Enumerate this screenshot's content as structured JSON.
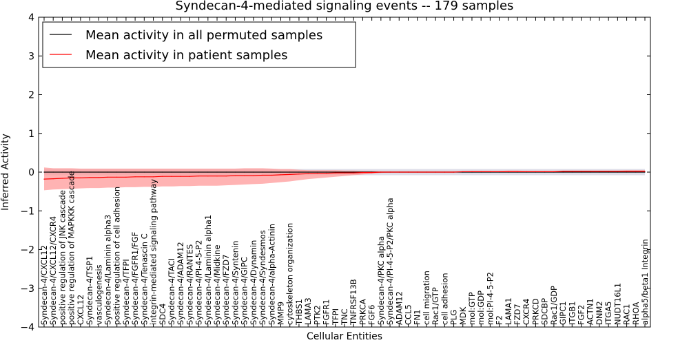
{
  "chart_data": {
    "type": "line",
    "title": "Syndecan-4-mediated signaling events -- 179 samples",
    "xlabel": "Cellular Entities",
    "ylabel": "Inferred Activity",
    "ylim": [
      -4,
      4
    ],
    "yticks": [
      4,
      3,
      2,
      1,
      0,
      -1,
      -2,
      -3,
      -4
    ],
    "ytick_labels": [
      "4",
      "3",
      "2",
      "1",
      "0",
      "−1",
      "−2",
      "−3",
      "−4"
    ],
    "legend_position": "top-left",
    "colors": {
      "permuted": "#000000",
      "patient": "#ff0000",
      "patient_band": "#ff9999",
      "permuted_band": "#c8c8d8"
    },
    "categories": [
      "Syndecan-4/CXCL12",
      "Syndecan-4/CXCL12/CXCR4",
      "positive regulation of JNK cascade",
      "positive regulation of MAPKKK cascade",
      "CXCL12",
      "Syndecan-4/TSP1",
      "vasculogenesis",
      "Syndecan-4/Laminin alpha3",
      "positive regulation of cell adhesion",
      "Syndecan-4/TFPI",
      "Syndecan-4/FGFR1/FGF",
      "Syndecan-4/Tenascin C",
      "integrin-mediated signaling pathway",
      "SDC4",
      "Syndecan-4/TACI",
      "Syndecan-4/ADAM12",
      "Syndecan-4/RANTES",
      "Syndecan-4/PI-4-5-P2",
      "Syndecan-4/Laminin alpha1",
      "Syndecan-4/Midkine",
      "Syndecan-4/FZD7",
      "Syndecan-4/Syntenin",
      "Syndecan-4/GIPC",
      "Syndecan-4/Dynamin",
      "Syndecan-4/Syndesmos",
      "Syndecan-4/alpha-Actinin",
      "MMP9",
      "cytoskeleton organization",
      "THBS1",
      "LAMA3",
      "PTK2",
      "FGFR1",
      "TFPI",
      "TNC",
      "TNFRSF13B",
      "PRKCA",
      "FGF6",
      "Syndecan-4/PKC alpha",
      "Syndecan-4/PI-4-5-P2/PKC alpha",
      "ADAM12",
      "CCL5",
      "FN1",
      "cell migration",
      "Rac1/GTP",
      "cell adhesion",
      "PLG",
      "MDK",
      "mol:GTP",
      "mol:GDP",
      "mol:PI-4-5-P2",
      "F2",
      "LAMA1",
      "FZD7",
      "CXCR4",
      "PRKCD",
      "SDCBP",
      "Rac1/GDP",
      "GIPC1",
      "ITGB1",
      "FGF2",
      "ACTN1",
      "DNM2",
      "ITGA5",
      "NUDT16L1",
      "RAC1",
      "RHOA",
      "alpha5/beta1 Integrin"
    ],
    "series": [
      {
        "name": "Mean activity in all permuted samples",
        "color": "#000000",
        "values": [
          0.0,
          0.0,
          0.0,
          0.0,
          0.0,
          0.0,
          0.0,
          0.0,
          0.0,
          0.0,
          0.0,
          0.0,
          0.0,
          0.0,
          0.0,
          0.0,
          0.0,
          0.0,
          0.0,
          0.0,
          0.0,
          0.0,
          0.0,
          0.0,
          0.0,
          0.0,
          0.0,
          0.0,
          0.0,
          0.0,
          0.0,
          0.0,
          0.0,
          0.0,
          0.0,
          0.0,
          0.0,
          0.0,
          0.0,
          0.0,
          0.0,
          0.0,
          0.0,
          0.0,
          0.0,
          0.0,
          0.0,
          0.0,
          0.0,
          0.0,
          0.0,
          0.0,
          0.0,
          0.0,
          0.0,
          0.0,
          0.0,
          0.0,
          0.0,
          0.0,
          0.0,
          0.0,
          0.0,
          0.0,
          0.0,
          0.0,
          0.0
        ],
        "band_lower": [
          -0.08,
          -0.08,
          -0.08,
          -0.08,
          -0.08,
          -0.08,
          -0.08,
          -0.08,
          -0.08,
          -0.08,
          -0.08,
          -0.08,
          -0.08,
          -0.08,
          -0.08,
          -0.08,
          -0.08,
          -0.08,
          -0.08,
          -0.08,
          -0.08,
          -0.08,
          -0.08,
          -0.08,
          -0.08,
          -0.08,
          -0.08,
          -0.08,
          -0.08,
          -0.08,
          -0.08,
          -0.08,
          -0.08,
          -0.08,
          -0.08,
          -0.08,
          -0.08,
          -0.08,
          -0.08,
          -0.08,
          -0.08,
          -0.08,
          -0.08,
          -0.08,
          -0.08,
          -0.08,
          -0.08,
          -0.08,
          -0.08,
          -0.08,
          -0.08,
          -0.08,
          -0.08,
          -0.08,
          -0.08,
          -0.08,
          -0.08,
          -0.08,
          -0.08,
          -0.08,
          -0.08,
          -0.08,
          -0.08,
          -0.08,
          -0.08,
          -0.08,
          -0.08
        ],
        "band_upper": [
          0.08,
          0.08,
          0.08,
          0.08,
          0.08,
          0.08,
          0.08,
          0.08,
          0.08,
          0.08,
          0.08,
          0.08,
          0.08,
          0.08,
          0.08,
          0.08,
          0.08,
          0.08,
          0.08,
          0.08,
          0.08,
          0.08,
          0.08,
          0.08,
          0.08,
          0.08,
          0.08,
          0.08,
          0.08,
          0.08,
          0.08,
          0.08,
          0.08,
          0.08,
          0.08,
          0.08,
          0.08,
          0.08,
          0.08,
          0.08,
          0.08,
          0.08,
          0.08,
          0.08,
          0.08,
          0.08,
          0.08,
          0.08,
          0.08,
          0.08,
          0.08,
          0.08,
          0.08,
          0.08,
          0.08,
          0.08,
          0.08,
          0.08,
          0.08,
          0.08,
          0.08,
          0.08,
          0.08,
          0.08,
          0.08,
          0.08,
          0.08
        ]
      },
      {
        "name": "Mean activity in patient samples",
        "color": "#ff0000",
        "values": [
          -0.18,
          -0.17,
          -0.16,
          -0.15,
          -0.15,
          -0.14,
          -0.14,
          -0.13,
          -0.13,
          -0.13,
          -0.12,
          -0.12,
          -0.12,
          -0.11,
          -0.11,
          -0.11,
          -0.11,
          -0.1,
          -0.1,
          -0.1,
          -0.1,
          -0.09,
          -0.09,
          -0.09,
          -0.08,
          -0.08,
          -0.07,
          -0.06,
          -0.05,
          -0.04,
          -0.03,
          -0.03,
          -0.02,
          -0.02,
          -0.02,
          -0.01,
          -0.01,
          0.0,
          0.0,
          0.0,
          0.0,
          0.0,
          0.0,
          0.0,
          0.0,
          0.0,
          0.01,
          0.01,
          0.01,
          0.01,
          0.01,
          0.01,
          0.01,
          0.01,
          0.01,
          0.01,
          0.01,
          0.02,
          0.02,
          0.02,
          0.02,
          0.02,
          0.02,
          0.02,
          0.02,
          0.02,
          0.02
        ],
        "band_lower": [
          -0.47,
          -0.45,
          -0.44,
          -0.43,
          -0.42,
          -0.41,
          -0.41,
          -0.4,
          -0.4,
          -0.39,
          -0.39,
          -0.38,
          -0.38,
          -0.37,
          -0.37,
          -0.36,
          -0.36,
          -0.35,
          -0.35,
          -0.35,
          -0.34,
          -0.33,
          -0.32,
          -0.31,
          -0.3,
          -0.28,
          -0.26,
          -0.24,
          -0.21,
          -0.18,
          -0.16,
          -0.14,
          -0.12,
          -0.1,
          -0.08,
          -0.06,
          -0.04,
          -0.02,
          -0.01,
          -0.01,
          -0.01,
          -0.01,
          -0.01,
          -0.01,
          -0.01,
          -0.01,
          0.0,
          0.0,
          0.0,
          0.0,
          0.0,
          0.0,
          0.0,
          0.0,
          0.0,
          0.0,
          0.0,
          0.0,
          0.0,
          0.0,
          0.0,
          0.0,
          0.0,
          0.0,
          0.0,
          0.0,
          0.0
        ],
        "band_upper": [
          0.12,
          0.1,
          0.1,
          0.1,
          0.09,
          0.09,
          0.09,
          0.09,
          0.09,
          0.09,
          0.09,
          0.09,
          0.09,
          0.09,
          0.09,
          0.09,
          0.09,
          0.09,
          0.09,
          0.09,
          0.09,
          0.09,
          0.1,
          0.1,
          0.1,
          0.09,
          0.08,
          0.08,
          0.06,
          0.05,
          0.05,
          0.05,
          0.05,
          0.04,
          0.04,
          0.03,
          0.03,
          0.02,
          0.02,
          0.02,
          0.02,
          0.02,
          0.02,
          0.02,
          0.02,
          0.02,
          0.02,
          0.03,
          0.03,
          0.03,
          0.03,
          0.04,
          0.04,
          0.03,
          0.03,
          0.03,
          0.03,
          0.04,
          0.04,
          0.04,
          0.04,
          0.04,
          0.04,
          0.04,
          0.05,
          0.05,
          0.05
        ]
      }
    ]
  }
}
